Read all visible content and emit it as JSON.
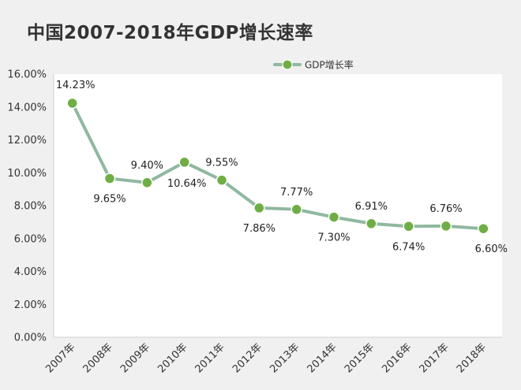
{
  "chart_data": {
    "type": "line",
    "title": "中国2007-2018年GDP增长速率",
    "categories": [
      "2007年",
      "2008年",
      "2009年",
      "2010年",
      "2011年",
      "2012年",
      "2013年",
      "2014年",
      "2015年",
      "2016年",
      "2017年",
      "2018年"
    ],
    "series": [
      {
        "name": "GDP增长率",
        "values": [
          14.23,
          9.65,
          9.4,
          10.64,
          9.55,
          7.86,
          7.77,
          7.3,
          6.91,
          6.74,
          6.76,
          6.6
        ],
        "labels": [
          "14.23%",
          "9.65%",
          "9.40%",
          "10.64%",
          "9.55%",
          "7.86%",
          "7.77%",
          "7.30%",
          "6.91%",
          "6.74%",
          "6.76%",
          "6.60%"
        ]
      }
    ],
    "ylim": [
      0,
      16
    ],
    "y_ticks": [
      "0.00%",
      "2.00%",
      "4.00%",
      "6.00%",
      "8.00%",
      "10.00%",
      "12.00%",
      "14.00%",
      "16.00%"
    ],
    "grid": false,
    "legend_position": "top-right",
    "colors": {
      "line": "#8fb8a0",
      "marker": "#6fae44",
      "axis": "#d0d0d0",
      "plot_bg": "#ffffff",
      "page_bg": "#f0f0f0"
    }
  }
}
